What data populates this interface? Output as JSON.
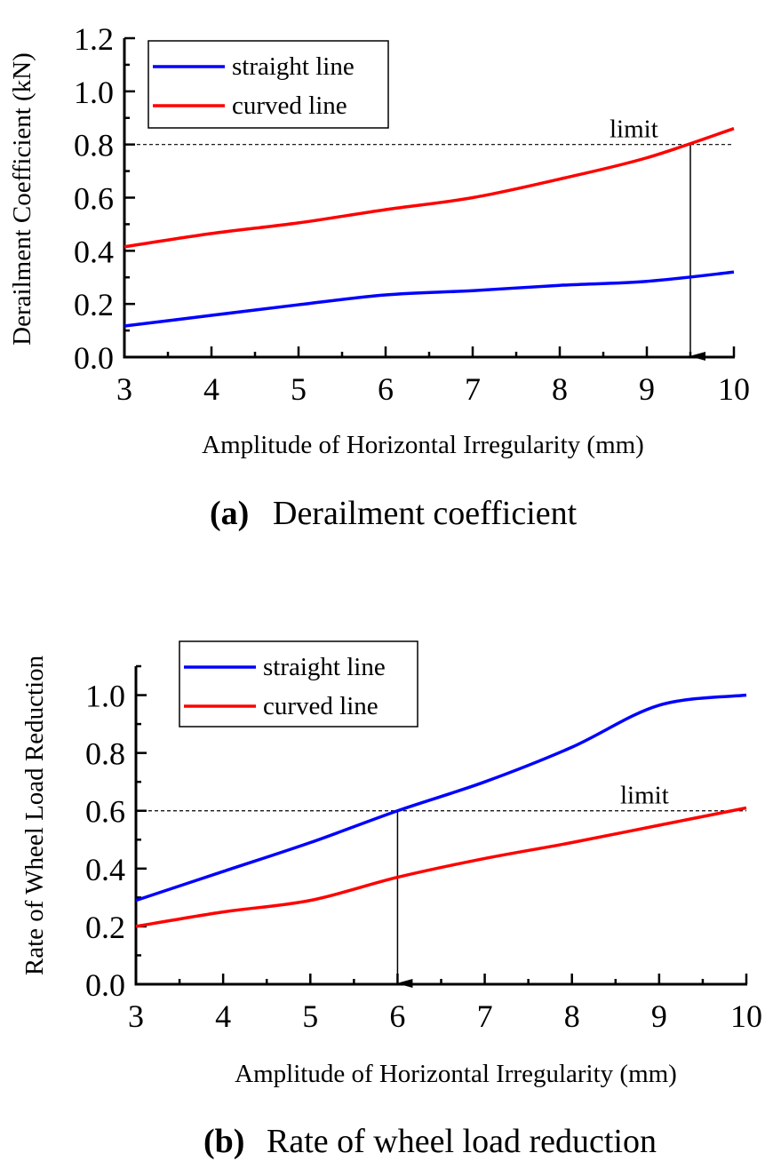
{
  "chart_data": [
    {
      "id": "a",
      "type": "line",
      "caption_tag": "(a)",
      "caption": "Derailment coefficient",
      "title": "",
      "xlabel": "Amplitude of Horizontal Irregularity (mm)",
      "ylabel": "Derailment Coefficient (kN)",
      "xlim": [
        3,
        10
      ],
      "ylim": [
        0,
        1.2
      ],
      "xticks": [
        3,
        4,
        5,
        6,
        7,
        8,
        9,
        10
      ],
      "xtick_labels": [
        "3",
        "4",
        "5",
        "6",
        "7",
        "8",
        "9",
        "10"
      ],
      "yticks": [
        0,
        0.2,
        0.4,
        0.6,
        0.8,
        1.0,
        1.2
      ],
      "ytick_labels": [
        "0.0",
        "0.2",
        "0.4",
        "0.6",
        "0.8",
        "1.0",
        "1.2"
      ],
      "grid": false,
      "legend_position": "top-left",
      "x": [
        3,
        4,
        5,
        6,
        7,
        8,
        9,
        10
      ],
      "series": [
        {
          "name": "straight line",
          "color": "#0000ff",
          "values": [
            0.117,
            0.157,
            0.197,
            0.234,
            0.25,
            0.27,
            0.285,
            0.32
          ]
        },
        {
          "name": "curved line",
          "color": "#ff0000",
          "values": [
            0.415,
            0.465,
            0.505,
            0.555,
            0.6,
            0.67,
            0.75,
            0.86
          ]
        }
      ],
      "limit": {
        "label": "limit",
        "value": 0.8,
        "arrow_x": 9.5
      }
    },
    {
      "id": "b",
      "type": "line",
      "caption_tag": "(b)",
      "caption": "Rate of wheel load reduction",
      "title": "",
      "xlabel": "Amplitude of Horizontal Irregularity (mm)",
      "ylabel": "Rate of Wheel Load Reduction",
      "xlim": [
        3,
        10
      ],
      "ylim": [
        0,
        1.1
      ],
      "xticks": [
        3,
        4,
        5,
        6,
        7,
        8,
        9,
        10
      ],
      "xtick_labels": [
        "3",
        "4",
        "5",
        "6",
        "7",
        "8",
        "9",
        "10"
      ],
      "yticks": [
        0,
        0.2,
        0.4,
        0.6,
        0.8,
        1.0
      ],
      "ytick_labels": [
        "0.0",
        "0.2",
        "0.4",
        "0.6",
        "0.8",
        "1.0"
      ],
      "grid": false,
      "legend_position": "top-left",
      "x": [
        3,
        4,
        5,
        6,
        7,
        8,
        9,
        10
      ],
      "series": [
        {
          "name": "straight line",
          "color": "#0000ff",
          "values": [
            0.29,
            0.39,
            0.49,
            0.6,
            0.7,
            0.82,
            0.965,
            1.0
          ]
        },
        {
          "name": "curved line",
          "color": "#ff0000",
          "values": [
            0.2,
            0.25,
            0.29,
            0.37,
            0.435,
            0.49,
            0.55,
            0.61
          ]
        }
      ],
      "limit": {
        "label": "limit",
        "value": 0.6,
        "arrow_x": 6
      }
    }
  ]
}
